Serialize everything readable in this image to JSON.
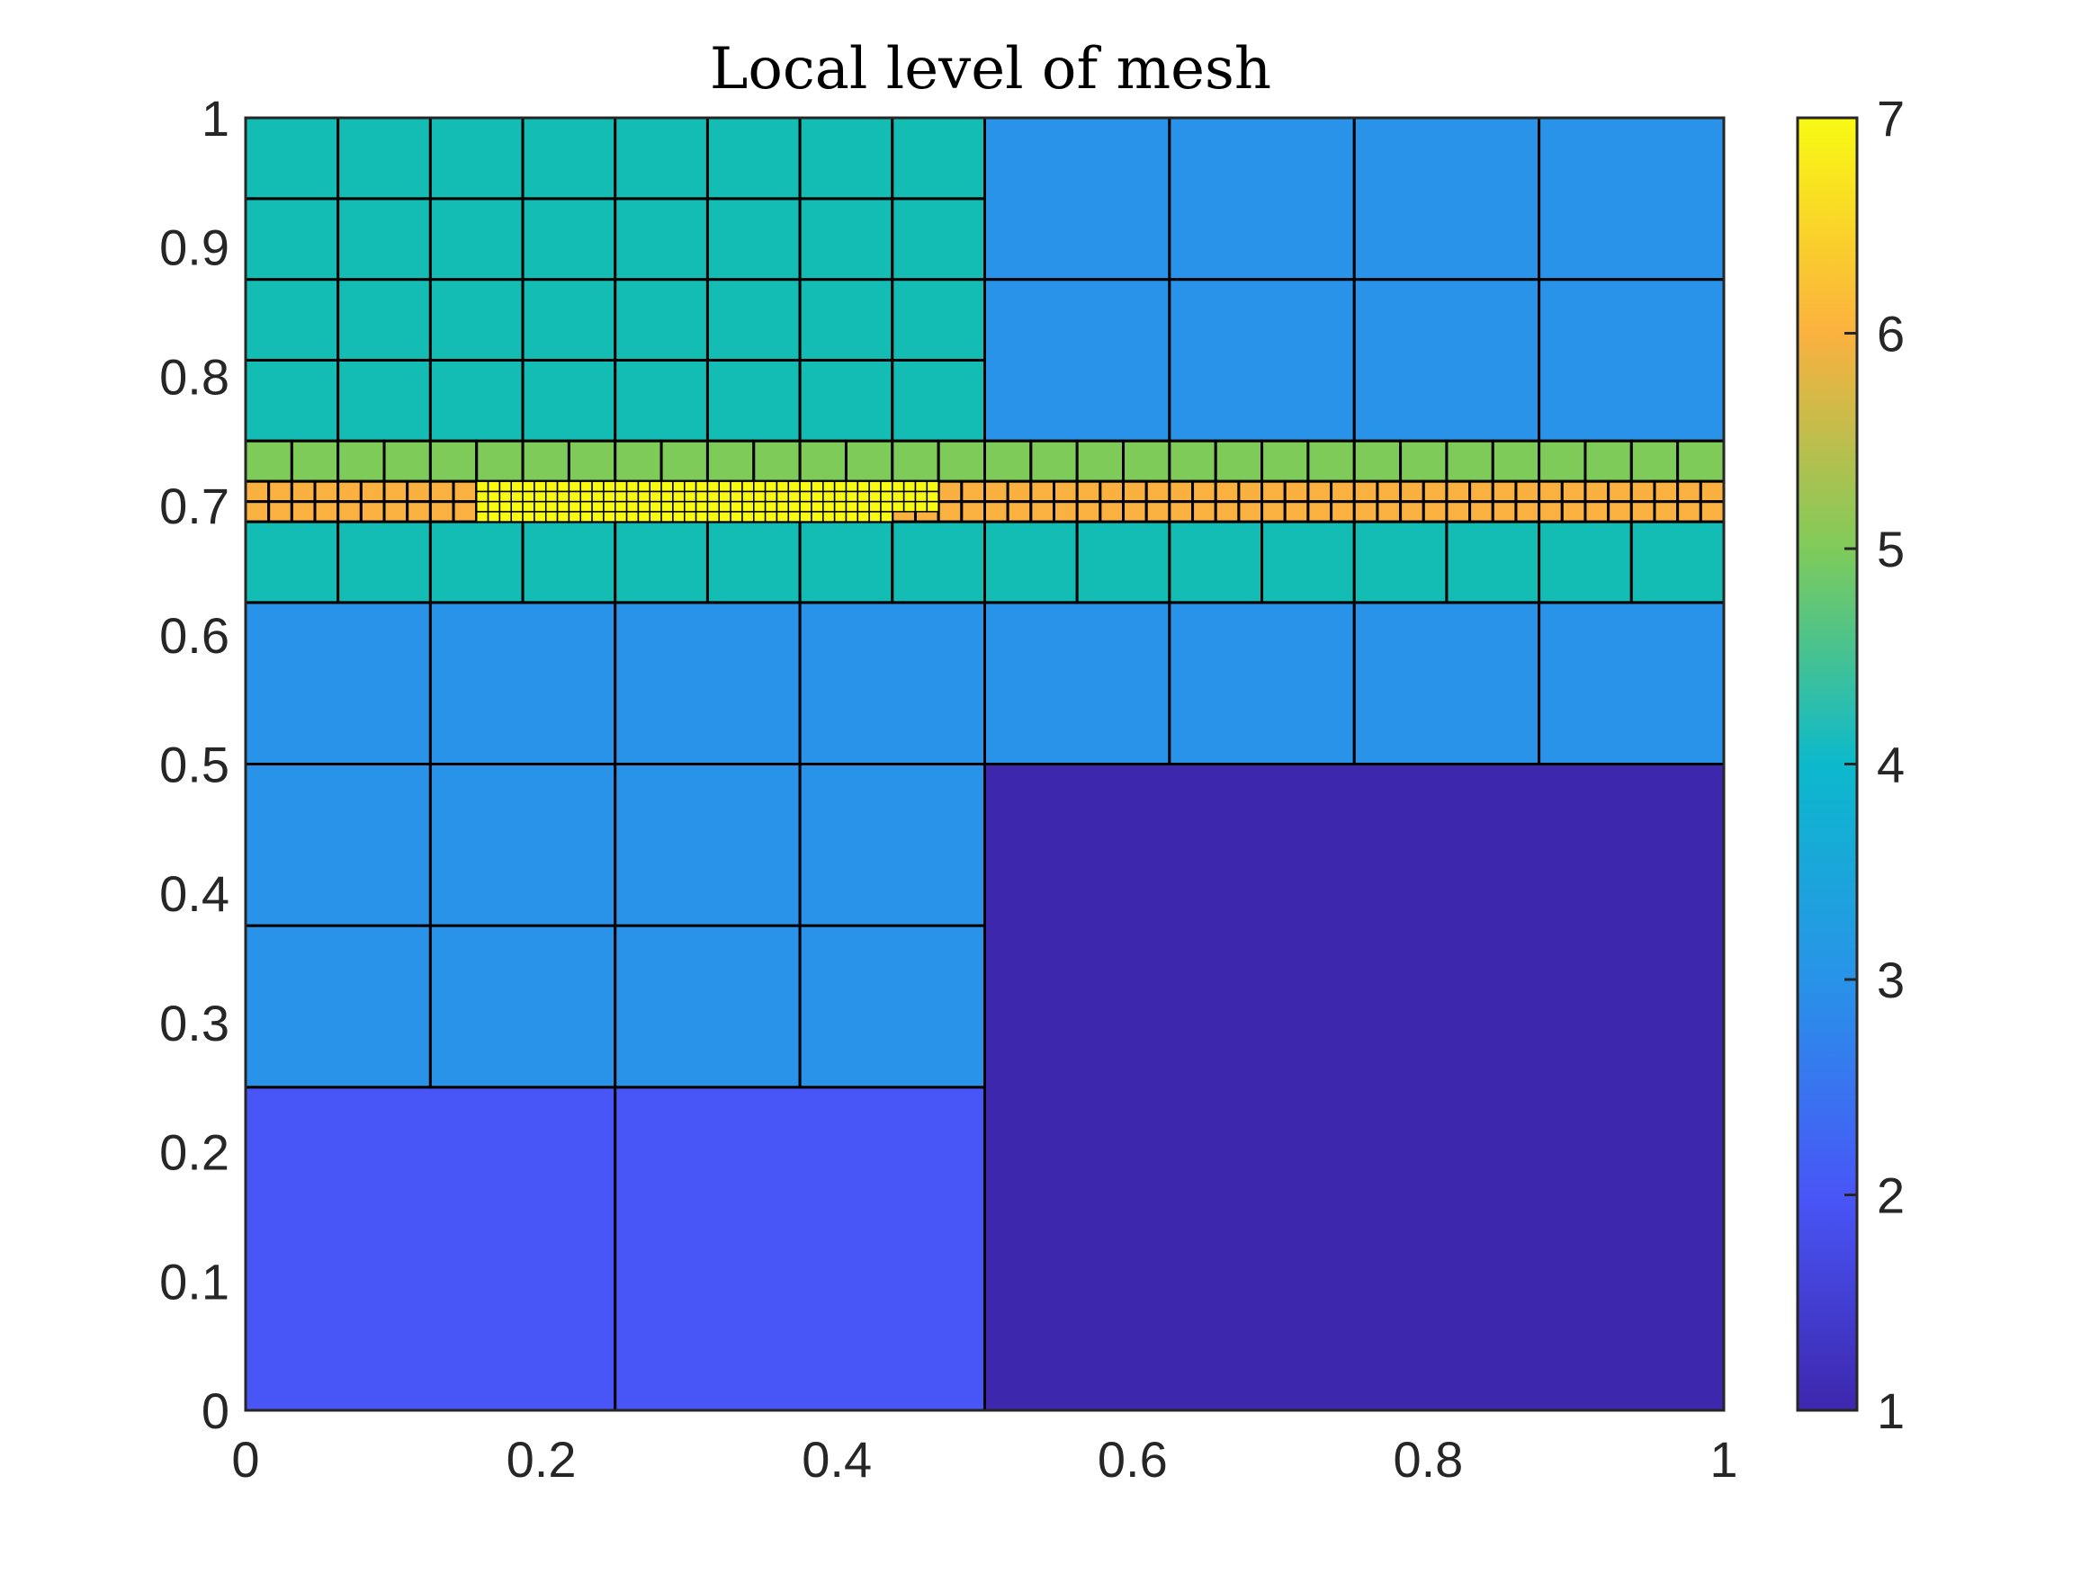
{
  "chart_data": {
    "type": "heatmap",
    "title": "Local level of mesh",
    "xlabel": "",
    "ylabel": "",
    "xlim": [
      0,
      1
    ],
    "ylim": [
      0,
      1
    ],
    "x_ticks": [
      "0",
      "0.2",
      "0.4",
      "0.6",
      "0.8",
      "1"
    ],
    "y_ticks": [
      "0",
      "0.1",
      "0.2",
      "0.3",
      "0.4",
      "0.5",
      "0.6",
      "0.7",
      "0.8",
      "0.9",
      "1"
    ],
    "colorbar": {
      "min": 1,
      "max": 7,
      "ticks": [
        "1",
        "2",
        "3",
        "4",
        "5",
        "6",
        "7"
      ],
      "colormap": "parula"
    },
    "level_colors": {
      "1": "#3d27ad",
      "2": "#4856f7",
      "3": "#2893e8",
      "4": "#14bdb3",
      "5": "#7fcb5a",
      "6": "#fbb13f",
      "7": "#f8fa12"
    },
    "regions": [
      {
        "x0": 0.5,
        "x1": 1.0,
        "y0": 0.0,
        "y1": 0.5,
        "dx": 0.5,
        "dy": 0.5,
        "level": 1
      },
      {
        "x0": 0.0,
        "x1": 0.5,
        "y0": 0.0,
        "y1": 0.25,
        "dx": 0.25,
        "dy": 0.25,
        "level": 2
      },
      {
        "x0": 0.0,
        "x1": 0.5,
        "y0": 0.25,
        "y1": 0.5,
        "dx": 0.125,
        "dy": 0.125,
        "level": 3
      },
      {
        "x0": 0.0,
        "x1": 1.0,
        "y0": 0.5,
        "y1": 0.625,
        "dx": 0.125,
        "dy": 0.125,
        "level": 3
      },
      {
        "x0": 0.5,
        "x1": 1.0,
        "y0": 0.75,
        "y1": 1.0,
        "dx": 0.125,
        "dy": 0.125,
        "level": 3
      },
      {
        "x0": 0.0,
        "x1": 0.5,
        "y0": 0.75,
        "y1": 1.0,
        "dx": 0.0625,
        "dy": 0.0625,
        "level": 4
      },
      {
        "x0": 0.0,
        "x1": 1.0,
        "y0": 0.625,
        "y1": 0.6875,
        "dx": 0.0625,
        "dy": 0.0625,
        "level": 4
      },
      {
        "x0": 0.0,
        "x1": 1.0,
        "y0": 0.71875,
        "y1": 0.75,
        "dx": 0.03125,
        "dy": 0.03125,
        "level": 5
      },
      {
        "x0": 0.0,
        "x1": 1.0,
        "y0": 0.6875,
        "y1": 0.71875,
        "dx": 0.015625,
        "dy": 0.015625,
        "level": 6
      },
      {
        "x0": 0.15625,
        "x1": 0.4375,
        "y0": 0.6875,
        "y1": 0.71875,
        "dx": 0.0078125,
        "dy": 0.0078125,
        "level": 7
      },
      {
        "x0": 0.4375,
        "x1": 0.46875,
        "y0": 0.6953125,
        "y1": 0.71875,
        "dx": 0.0078125,
        "dy": 0.0078125,
        "level": 7
      }
    ]
  }
}
